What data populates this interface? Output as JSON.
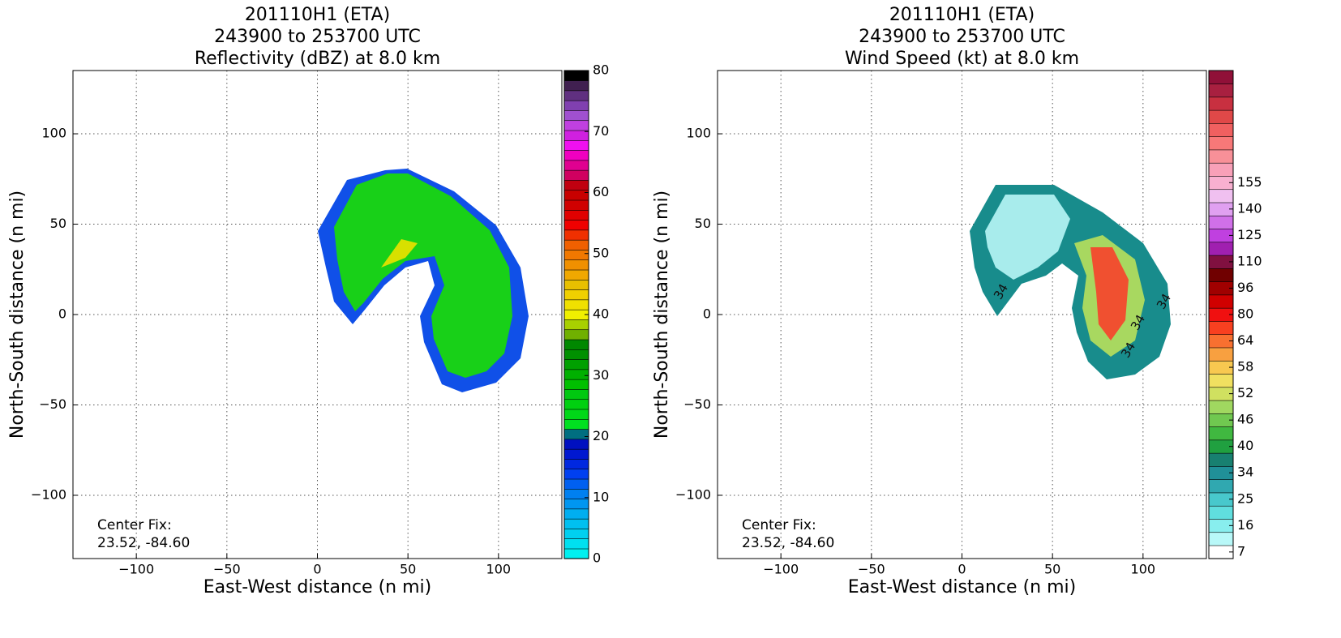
{
  "chart_data": [
    {
      "type": "map",
      "title": [
        "201110H1 (ETA)",
        "243900 to 253700 UTC",
        "Reflectivity (dBZ) at 8.0 km"
      ],
      "xlabel": "East-West distance (n mi)",
      "ylabel": "North-South distance (n mi)",
      "xlim": [
        -135,
        135
      ],
      "ylim": [
        -135,
        135
      ],
      "xticks": [
        {
          "value": -100,
          "label": "−100"
        },
        {
          "value": -50,
          "label": "−50"
        },
        0,
        50,
        100
      ],
      "yticks": [
        {
          "value": -100,
          "label": "−100"
        },
        {
          "value": -50,
          "label": "−50"
        },
        0,
        50,
        100
      ],
      "grid": true,
      "annotation": [
        "Center Fix:",
        "23.52, -84.60"
      ],
      "colorbar": {
        "lim": [
          0,
          80
        ],
        "ticks": [
          0,
          10,
          20,
          30,
          40,
          50,
          60,
          70,
          80
        ],
        "colors": [
          "#00f0f0",
          "#00e0f0",
          "#00d0f0",
          "#00c0f0",
          "#00aef0",
          "#0096f0",
          "#0080f0",
          "#0060f0",
          "#0040f0",
          "#0028e0",
          "#0018d0",
          "#0010c0",
          "#006e80",
          "#00e020",
          "#00d818",
          "#00d010",
          "#00c810",
          "#00c000",
          "#00b000",
          "#00a000",
          "#009000",
          "#008800",
          "#70b000",
          "#a8d000",
          "#f0f000",
          "#f0e000",
          "#f0d000",
          "#e8c000",
          "#f0a800",
          "#f09000",
          "#f07800",
          "#f06000",
          "#f03000",
          "#f00000",
          "#e00000",
          "#d00000",
          "#c80000",
          "#c00010",
          "#d00060",
          "#e00090",
          "#f000c0",
          "#f010f0",
          "#d020e0",
          "#c040e0",
          "#a050d0",
          "#8040b0",
          "#603080",
          "#402050",
          "#000000"
        ]
      }
    },
    {
      "type": "map",
      "title": [
        "201110H1 (ETA)",
        "243900 to 253700 UTC",
        "Wind Speed (kt) at 8.0 km"
      ],
      "xlabel": "East-West distance (n mi)",
      "ylabel": "North-South distance (n mi)",
      "xlim": [
        -135,
        135
      ],
      "ylim": [
        -135,
        135
      ],
      "xticks": [
        {
          "value": -100,
          "label": "−100"
        },
        {
          "value": -50,
          "label": "−50"
        },
        0,
        50,
        100
      ],
      "yticks": [
        {
          "value": -100,
          "label": "−100"
        },
        {
          "value": -50,
          "label": "−50"
        },
        0,
        50,
        100
      ],
      "grid": true,
      "annotation": [
        "Center Fix:",
        "23.52, -84.60"
      ],
      "contour_labels": [
        34,
        34,
        34,
        34
      ],
      "colorbar": {
        "ticks": [
          7,
          16,
          25,
          34,
          40,
          46,
          52,
          58,
          64,
          80,
          96,
          110,
          125,
          140,
          155
        ],
        "colors": [
          "#ffffff",
          "#b8f8f8",
          "#88eeee",
          "#60dede",
          "#48c8cc",
          "#30a8b0",
          "#209098",
          "#188070",
          "#20a040",
          "#40b840",
          "#70c850",
          "#a0d860",
          "#d0e060",
          "#f0e060",
          "#f8c850",
          "#f8a040",
          "#f87030",
          "#f84020",
          "#f01010",
          "#d00000",
          "#a00000",
          "#700000",
          "#801040",
          "#a020b0",
          "#c040e0",
          "#d070e8",
          "#e0a0f0",
          "#f0c0f0",
          "#f8b0d0",
          "#f8a0b8",
          "#f89098",
          "#f87878",
          "#f06060",
          "#e04848",
          "#c83040",
          "#a82040",
          "#901038"
        ]
      }
    }
  ]
}
